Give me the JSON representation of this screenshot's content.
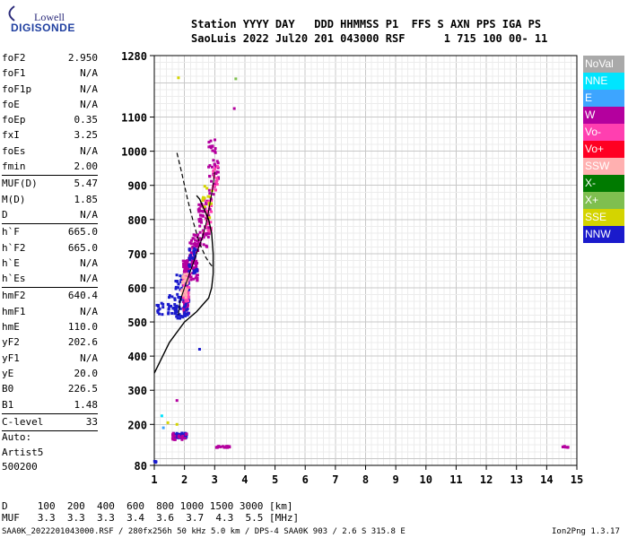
{
  "logo": {
    "top": "Lowell",
    "bottom": "DIGISONDE"
  },
  "header": {
    "line1": "Station YYYY DAY   DDD HHMMSS P1  FFS S AXN PPS IGA PS",
    "line2": "SaoLuis 2022 Jul20 201 043000 RSF      1 715 100 00- 11"
  },
  "params": [
    {
      "k": "foF2",
      "v": "2.950"
    },
    {
      "k": "foF1",
      "v": "N/A"
    },
    {
      "k": "foF1p",
      "v": "N/A"
    },
    {
      "k": "foE",
      "v": "N/A"
    },
    {
      "k": "foEp",
      "v": "0.35"
    },
    {
      "k": "fxI",
      "v": "3.25"
    },
    {
      "k": "foEs",
      "v": "N/A"
    },
    {
      "k": "fmin",
      "v": "2.00"
    },
    {
      "sep": true
    },
    {
      "k": "MUF(D)",
      "v": "5.47"
    },
    {
      "k": "M(D)",
      "v": "1.85"
    },
    {
      "k": "D",
      "v": "N/A"
    },
    {
      "sep": true
    },
    {
      "k": "h`F",
      "v": "665.0"
    },
    {
      "k": "h`F2",
      "v": "665.0"
    },
    {
      "k": "h`E",
      "v": "N/A"
    },
    {
      "k": "h`Es",
      "v": "N/A"
    },
    {
      "sep": true
    },
    {
      "k": "hmF2",
      "v": "640.4"
    },
    {
      "k": "hmF1",
      "v": "N/A"
    },
    {
      "k": "hmE",
      "v": "110.0"
    },
    {
      "k": "yF2",
      "v": "202.6"
    },
    {
      "k": "yF1",
      "v": "N/A"
    },
    {
      "k": "yE",
      "v": "20.0"
    },
    {
      "k": "B0",
      "v": "226.5"
    },
    {
      "k": "B1",
      "v": "1.48"
    },
    {
      "sep": true
    },
    {
      "k": "C-level",
      "v": "33"
    },
    {
      "sep": true
    }
  ],
  "auto": {
    "label": "Auto:",
    "artist": "Artist5",
    "version": "500200"
  },
  "legend": [
    {
      "label": "NoVal",
      "color": "#a9a9a9"
    },
    {
      "label": "NNE",
      "color": "#00e5ff"
    },
    {
      "label": "E",
      "color": "#3da5ff"
    },
    {
      "label": "W",
      "color": "#b4009e"
    },
    {
      "label": "Vo-",
      "color": "#ff3fb0"
    },
    {
      "label": "Vo+",
      "color": "#ff0022"
    },
    {
      "label": "SSW",
      "color": "#ffb0b0"
    },
    {
      "label": "X-",
      "color": "#007a00"
    },
    {
      "label": "X+",
      "color": "#7fbf4f"
    },
    {
      "label": "SSE",
      "color": "#d4d400"
    },
    {
      "label": "NNW",
      "color": "#1a1acc"
    }
  ],
  "footer": {
    "d_line": "D     100  200  400  600  800 1000 1500 3000 [km]",
    "muf_line": "MUF   3.3  3.3  3.3  3.4  3.6  3.7  4.3  5.5 [MHz]",
    "file_line": "SAA0K_2022201043000.RSF / 280fx256h 50 kHz 5.0 km / DPS-4 SAA0K 903 / 2.6 S 315.8 E",
    "version": "Ion2Png 1.3.17"
  },
  "chart_data": {
    "type": "scatter",
    "xlim": [
      1,
      15
    ],
    "ylim": [
      80,
      1280
    ],
    "x_ticks": [
      1,
      2,
      3,
      4,
      5,
      6,
      7,
      8,
      9,
      10,
      11,
      12,
      13,
      14,
      15
    ],
    "y_ticks": [
      80,
      200,
      300,
      400,
      500,
      600,
      700,
      800,
      900,
      1000,
      1100,
      1280
    ],
    "grid": true,
    "clusters": [
      {
        "x": [
          1.95,
          2.15
        ],
        "y": [
          520,
          680
        ],
        "n": 150,
        "color": "#b4009e"
      },
      {
        "x": [
          1.7,
          2.15
        ],
        "y": [
          510,
          640
        ],
        "n": 80,
        "color": "#1a1acc"
      },
      {
        "x": [
          1.95,
          2.15
        ],
        "y": [
          560,
          640
        ],
        "n": 40,
        "color": "#ff3fb0"
      },
      {
        "x": [
          1.9,
          2.1
        ],
        "y": [
          570,
          640
        ],
        "n": 25,
        "color": "#ffb0b0"
      },
      {
        "x": [
          2.15,
          2.45
        ],
        "y": [
          620,
          760
        ],
        "n": 70,
        "color": "#b4009e"
      },
      {
        "x": [
          2.15,
          2.45
        ],
        "y": [
          640,
          720
        ],
        "n": 25,
        "color": "#1a1acc"
      },
      {
        "x": [
          2.45,
          2.85
        ],
        "y": [
          720,
          860
        ],
        "n": 60,
        "color": "#b4009e"
      },
      {
        "x": [
          2.6,
          2.9
        ],
        "y": [
          760,
          860
        ],
        "n": 25,
        "color": "#ff3fb0"
      },
      {
        "x": [
          2.6,
          2.95
        ],
        "y": [
          800,
          900
        ],
        "n": 15,
        "color": "#d4d400"
      },
      {
        "x": [
          2.8,
          3.15
        ],
        "y": [
          860,
          1040
        ],
        "n": 40,
        "color": "#b4009e"
      },
      {
        "x": [
          2.9,
          3.1
        ],
        "y": [
          880,
          960
        ],
        "n": 15,
        "color": "#ff3fb0"
      },
      {
        "x": [
          1.0,
          1.3
        ],
        "y": [
          520,
          560
        ],
        "n": 12,
        "color": "#1a1acc"
      },
      {
        "x": [
          1.45,
          1.7
        ],
        "y": [
          520,
          580
        ],
        "n": 20,
        "color": "#1a1acc"
      },
      {
        "x": [
          1.6,
          2.1
        ],
        "y": [
          160,
          175
        ],
        "n": 40,
        "color": "#1a1acc"
      },
      {
        "x": [
          1.6,
          2.1
        ],
        "y": [
          155,
          175
        ],
        "n": 20,
        "color": "#b4009e"
      },
      {
        "x": [
          3.0,
          3.5
        ],
        "y": [
          132,
          136
        ],
        "n": 20,
        "color": "#b4009e"
      },
      {
        "x": [
          14.5,
          14.8
        ],
        "y": [
          132,
          136
        ],
        "n": 6,
        "color": "#b4009e"
      },
      {
        "x": [
          1.0,
          1.1
        ],
        "y": [
          88,
          94
        ],
        "n": 4,
        "color": "#1a1acc"
      }
    ],
    "points": [
      {
        "x": 1.8,
        "y": 1215,
        "color": "#d4d400"
      },
      {
        "x": 3.7,
        "y": 1212,
        "color": "#7fbf4f"
      },
      {
        "x": 3.65,
        "y": 1125,
        "color": "#b4009e"
      },
      {
        "x": 2.5,
        "y": 420,
        "color": "#1a1acc"
      },
      {
        "x": 1.75,
        "y": 270,
        "color": "#b4009e"
      },
      {
        "x": 1.25,
        "y": 225,
        "color": "#00e5ff"
      },
      {
        "x": 1.45,
        "y": 205,
        "color": "#d4d400"
      },
      {
        "x": 1.3,
        "y": 190,
        "color": "#3da5ff"
      },
      {
        "x": 1.75,
        "y": 200,
        "color": "#d4d400"
      }
    ],
    "profile_curve": {
      "x": [
        1.0,
        1.5,
        2.0,
        2.4,
        2.8,
        2.9,
        2.95,
        2.95,
        2.9,
        2.8,
        2.65,
        2.5,
        2.4
      ],
      "y": [
        350,
        440,
        500,
        530,
        570,
        600,
        640,
        700,
        760,
        800,
        830,
        860,
        870
      ]
    },
    "trace_curve": {
      "x": [
        1.8,
        1.85,
        2.0,
        2.2,
        2.4,
        2.6,
        2.75,
        2.85,
        2.95,
        3.0
      ],
      "y": [
        520,
        560,
        600,
        650,
        700,
        750,
        800,
        850,
        900,
        940
      ]
    },
    "dashed_curve": {
      "x": [
        1.75,
        1.9,
        2.1,
        2.3,
        2.5,
        2.7,
        2.85,
        2.95
      ],
      "y": [
        995,
        940,
        860,
        790,
        730,
        690,
        670,
        660
      ]
    }
  }
}
